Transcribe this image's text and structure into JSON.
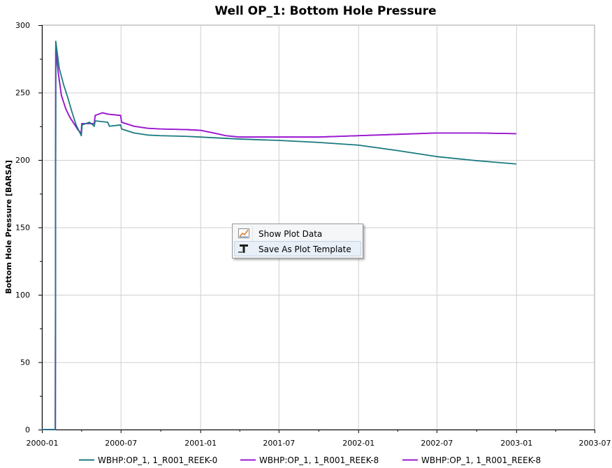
{
  "chart_data": {
    "type": "line",
    "title": "Well OP_1: Bottom Hole Pressure",
    "ylabel": "Bottom Hole Pressure [BARSA]",
    "xlabel": "",
    "ylim": [
      0,
      300
    ],
    "xlim": [
      "2000-01-01",
      "2003-07-01"
    ],
    "y_ticks": [
      "0",
      "50",
      "100",
      "150",
      "200",
      "250",
      "300"
    ],
    "x_ticks": [
      "2000-01",
      "2000-07",
      "2001-01",
      "2001-07",
      "2002-01",
      "2002-07",
      "2003-01",
      "2003-07"
    ],
    "grid": true,
    "legend_position": "bottom",
    "series": [
      {
        "name": "WBHP:OP_1, 1_R001_REEK-0",
        "color": "#1a7a80",
        "points": [
          [
            "2000-01-01",
            0
          ],
          [
            "2000-02-01",
            0
          ],
          [
            "2000-02-02",
            288
          ],
          [
            "2000-02-10",
            268
          ],
          [
            "2000-02-20",
            256
          ],
          [
            "2000-03-01",
            246
          ],
          [
            "2000-03-10",
            236
          ],
          [
            "2000-03-20",
            226
          ],
          [
            "2000-04-01",
            218
          ],
          [
            "2000-04-03",
            226
          ],
          [
            "2000-04-20",
            228
          ],
          [
            "2000-05-01",
            225
          ],
          [
            "2000-05-03",
            229
          ],
          [
            "2000-06-01",
            228
          ],
          [
            "2000-06-05",
            225
          ],
          [
            "2000-07-01",
            226
          ],
          [
            "2000-07-03",
            223
          ],
          [
            "2000-08-01",
            220
          ],
          [
            "2000-09-01",
            218.5
          ],
          [
            "2000-10-01",
            218
          ],
          [
            "2000-12-01",
            217.5
          ],
          [
            "2001-01-01",
            217
          ],
          [
            "2001-04-01",
            215.5
          ],
          [
            "2001-07-01",
            214.5
          ],
          [
            "2001-10-01",
            213
          ],
          [
            "2002-01-01",
            211
          ],
          [
            "2002-04-01",
            207
          ],
          [
            "2002-07-01",
            202.5
          ],
          [
            "2002-10-01",
            199.5
          ],
          [
            "2003-01-01",
            197
          ]
        ]
      },
      {
        "name": "WBHP:OP_1, 1_R001_REEK-8",
        "color": "#9b19d1",
        "points": [
          [
            "2000-01-01",
            0
          ],
          [
            "2000-02-01",
            0
          ],
          [
            "2000-02-02",
            282
          ],
          [
            "2000-02-08",
            264
          ],
          [
            "2000-02-15",
            248
          ],
          [
            "2000-02-25",
            238
          ],
          [
            "2000-03-05",
            232
          ],
          [
            "2000-03-15",
            227
          ],
          [
            "2000-03-25",
            222
          ],
          [
            "2000-04-01",
            220
          ],
          [
            "2000-04-02",
            227
          ],
          [
            "2000-05-01",
            227
          ],
          [
            "2000-05-03",
            233
          ],
          [
            "2000-05-20",
            235
          ],
          [
            "2000-06-01",
            234
          ],
          [
            "2000-07-01",
            233
          ],
          [
            "2000-07-03",
            228
          ],
          [
            "2000-08-01",
            225
          ],
          [
            "2000-09-01",
            223.5
          ],
          [
            "2000-10-01",
            223
          ],
          [
            "2000-12-01",
            222.5
          ],
          [
            "2001-01-01",
            222
          ],
          [
            "2001-02-01",
            220
          ],
          [
            "2001-03-01",
            218
          ],
          [
            "2001-04-01",
            217
          ],
          [
            "2001-07-01",
            217
          ],
          [
            "2001-10-01",
            217
          ],
          [
            "2002-01-01",
            218
          ],
          [
            "2002-04-01",
            219
          ],
          [
            "2002-07-01",
            220
          ],
          [
            "2002-10-01",
            220
          ],
          [
            "2003-01-01",
            219.5
          ]
        ]
      },
      {
        "name": "WBHP:OP_1, 1_R001_REEK-8",
        "color": "#9b19d1",
        "points": [
          [
            "2000-01-01",
            0
          ],
          [
            "2000-02-01",
            0
          ],
          [
            "2000-02-02",
            282
          ],
          [
            "2000-02-08",
            264
          ],
          [
            "2000-02-15",
            248
          ],
          [
            "2000-02-25",
            238
          ],
          [
            "2000-03-05",
            232
          ],
          [
            "2000-03-15",
            227
          ],
          [
            "2000-03-25",
            222
          ],
          [
            "2000-04-01",
            220
          ],
          [
            "2000-04-02",
            227
          ],
          [
            "2000-05-01",
            227
          ],
          [
            "2000-05-03",
            233
          ],
          [
            "2000-05-20",
            235
          ],
          [
            "2000-06-01",
            234
          ],
          [
            "2000-07-01",
            233
          ],
          [
            "2000-07-03",
            228
          ],
          [
            "2000-08-01",
            225
          ],
          [
            "2000-09-01",
            223.5
          ],
          [
            "2000-10-01",
            223
          ],
          [
            "2000-12-01",
            222.5
          ],
          [
            "2001-01-01",
            222
          ],
          [
            "2001-02-01",
            220
          ],
          [
            "2001-03-01",
            218
          ],
          [
            "2001-04-01",
            217
          ],
          [
            "2001-07-01",
            217
          ],
          [
            "2001-10-01",
            217
          ],
          [
            "2002-01-01",
            218
          ],
          [
            "2002-04-01",
            219
          ],
          [
            "2002-07-01",
            220
          ],
          [
            "2002-10-01",
            220
          ],
          [
            "2003-01-01",
            219.5
          ]
        ]
      }
    ]
  },
  "context_menu": {
    "items": [
      {
        "label": "Show Plot Data",
        "icon": "plot-data-icon",
        "highlighted": false
      },
      {
        "label": "Save As Plot Template",
        "icon": "plot-template-icon",
        "highlighted": true
      }
    ]
  }
}
